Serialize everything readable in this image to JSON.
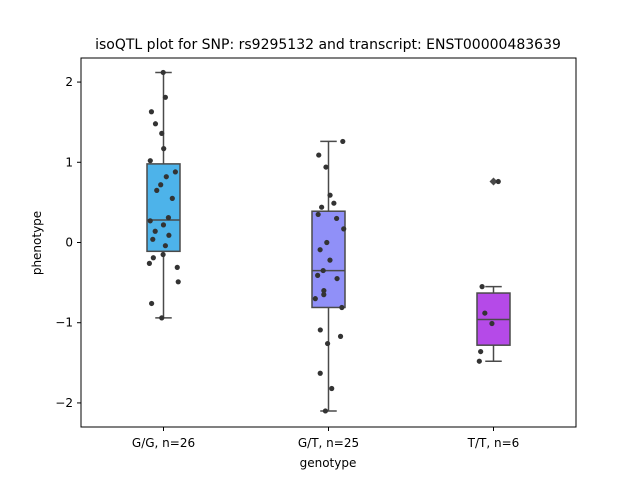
{
  "chart_data": {
    "type": "box",
    "title": "isoQTL plot for SNP: rs9295132 and transcript: ENST00000483639",
    "xlabel": "genotype",
    "ylabel": "phenotype",
    "ylim": [
      -2.3,
      2.3
    ],
    "yticks": [
      {
        "value": 2,
        "label": "2"
      },
      {
        "value": 1,
        "label": "1"
      },
      {
        "value": 0,
        "label": "0"
      },
      {
        "value": -1,
        "label": "−1"
      },
      {
        "value": -2,
        "label": "−2"
      }
    ],
    "grid": false,
    "legend": "none",
    "colors": {
      "box": [
        "#4db3ea",
        "#9090f8",
        "#b54ae8"
      ],
      "line": "#4a4a4a",
      "point": "#333333"
    },
    "groups": [
      {
        "label": "G/G, n=26",
        "q1": -0.11,
        "median": 0.28,
        "q3": 0.98,
        "whisker_low": -0.94,
        "whisker_high": 2.12,
        "outliers": [],
        "points": [
          2.12,
          1.81,
          1.63,
          1.48,
          1.36,
          1.17,
          1.02,
          0.88,
          0.82,
          0.72,
          0.65,
          0.55,
          0.31,
          0.27,
          0.22,
          0.14,
          0.09,
          0.04,
          -0.04,
          -0.15,
          -0.19,
          -0.26,
          -0.31,
          -0.49,
          -0.76,
          -0.94
        ]
      },
      {
        "label": "G/T, n=25",
        "q1": -0.81,
        "median": -0.35,
        "q3": 0.39,
        "whisker_low": -2.1,
        "whisker_high": 1.26,
        "outliers": [],
        "points": [
          1.26,
          1.09,
          0.94,
          0.59,
          0.49,
          0.44,
          0.35,
          0.17,
          0.0,
          -0.09,
          -0.22,
          -0.35,
          -0.41,
          -0.45,
          -0.6,
          -0.65,
          -0.7,
          -0.81,
          -1.09,
          -1.17,
          -1.26,
          -1.63,
          -1.82,
          -2.1,
          0.3
        ]
      },
      {
        "label": "T/T, n=6",
        "q1": -1.28,
        "median": -0.96,
        "q3": -0.63,
        "whisker_low": -1.48,
        "whisker_high": -0.55,
        "outliers": [
          0.76
        ],
        "points": [
          0.76,
          -0.55,
          -0.88,
          -1.01,
          -1.36,
          -1.48
        ]
      }
    ]
  }
}
